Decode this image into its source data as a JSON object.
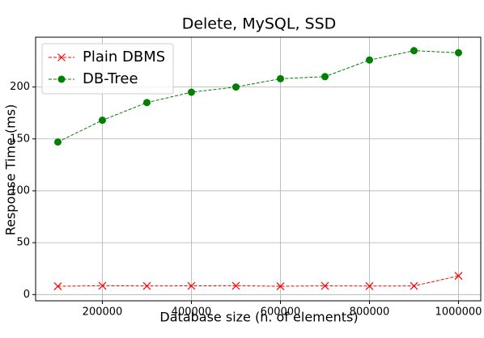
{
  "chart_data": {
    "type": "line",
    "title": "Delete, MySQL, SSD",
    "x_label": "Database size (n. of elements)",
    "y_label": "Response Time (ms)",
    "x": [
      100000,
      200000,
      300000,
      400000,
      500000,
      600000,
      700000,
      800000,
      900000,
      1000000
    ],
    "series": [
      {
        "name": "Plain DBMS",
        "color": "#ff0000",
        "marker": "x",
        "values": [
          8,
          8.5,
          8.3,
          8.4,
          8.5,
          8,
          8.4,
          8.2,
          8.3,
          18
        ]
      },
      {
        "name": "DB-Tree",
        "color": "#008000",
        "marker": "o",
        "values": [
          147,
          168,
          185,
          195,
          200,
          208,
          210,
          226,
          235,
          233
        ]
      }
    ],
    "xlim": [
      50000,
      1050000
    ],
    "xticks": [
      200000,
      400000,
      600000,
      800000,
      1000000
    ],
    "ylim": [
      -6,
      248
    ],
    "yticks": [
      0,
      50,
      100,
      150,
      200
    ],
    "grid": true,
    "legend": "upper-left"
  }
}
